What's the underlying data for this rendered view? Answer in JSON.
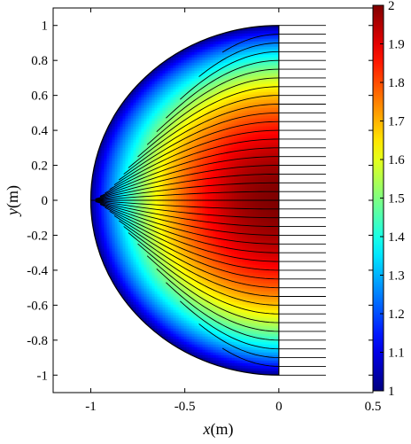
{
  "chart_data": {
    "type": "heatmap",
    "title": "",
    "xlabel_var": "x",
    "xlabel_unit": "(m)",
    "ylabel_var": "y",
    "ylabel_unit": "(m)",
    "xlim": [
      -1.2,
      0.5
    ],
    "ylim": [
      -1.1,
      1.1
    ],
    "x_ticks": [
      -1,
      -0.5,
      0,
      0.5
    ],
    "x_tick_labels": [
      "-1",
      "-0.5",
      "0",
      "0.5"
    ],
    "y_ticks": [
      1,
      0.8,
      0.6,
      0.4,
      0.2,
      0,
      -0.2,
      -0.4,
      -0.6,
      -0.8,
      -1
    ],
    "y_tick_labels": [
      "1",
      "0.8",
      "0.6",
      "0.4",
      "0.2",
      "0",
      "-0.2",
      "-0.4",
      "-0.6",
      "-0.8",
      "-1"
    ],
    "grid": false,
    "colormap": "jet",
    "colorbar_range": [
      1,
      2
    ],
    "colorbar_ticks": [
      2,
      1.9,
      1.8,
      1.7,
      1.6,
      1.5,
      1.4,
      1.3,
      1.2,
      1.1,
      1
    ],
    "colorbar_tick_labels": [
      "2",
      "1.9",
      "1.8",
      "1.7",
      "1.6",
      "1.5",
      "1.4",
      "1.3",
      "1.2",
      "1.1",
      "1"
    ],
    "region": "half-disk x <= 0, radius 1",
    "field_max": 2,
    "field_min": 1,
    "streamline_count": 41,
    "streamline_focus": [
      -1,
      0
    ],
    "streamline_exit_x": 0.25,
    "streamline_spacing_y": 0.05
  }
}
